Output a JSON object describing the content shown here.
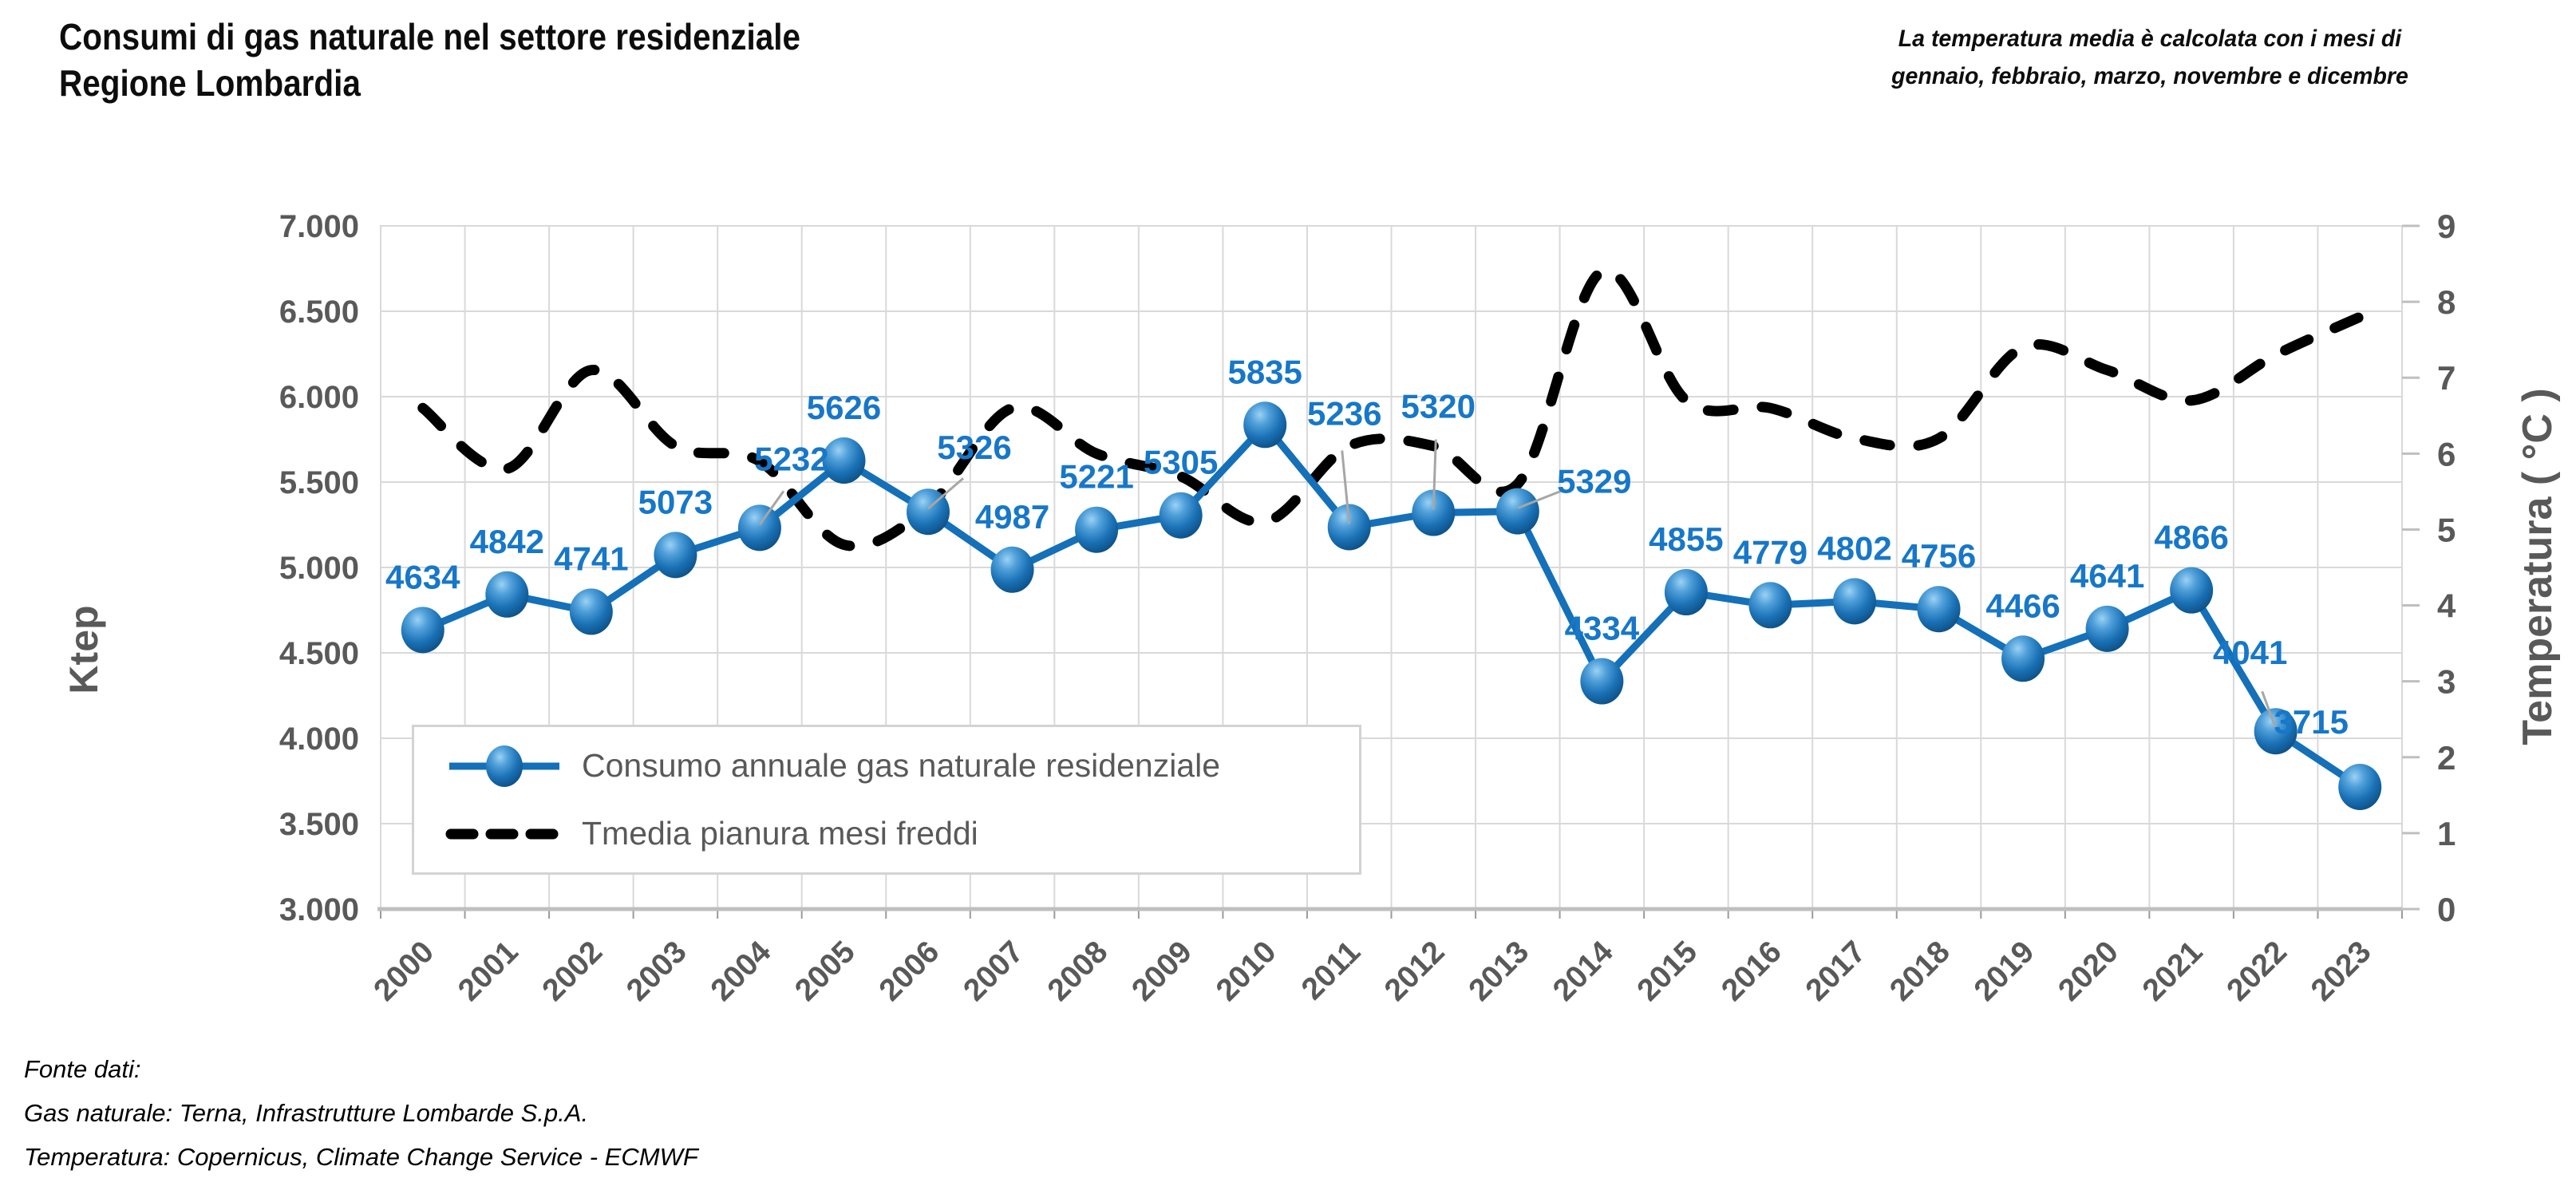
{
  "title": {
    "line1": "Consumi di gas naturale nel settore residenziale",
    "line2": "Regione Lombardia"
  },
  "note": {
    "line1": "La temperatura media è calcolata con i mesi di",
    "line2": "gennaio, febbraio, marzo, novembre e dicembre"
  },
  "source": {
    "line1": "Fonte dati:",
    "line2": "Gas naturale: Terna, Infrastrutture Lombarde S.p.A.",
    "line3": "Temperatura: Copernicus, Climate Change Service - ECMWF"
  },
  "colors": {
    "gas_line": "#1470B8",
    "gas_label": "#1777C8",
    "temp_line": "#000000",
    "grid": "#d9d9d9",
    "axis_line": "#bfbfbf",
    "axis_text": "#595959",
    "leader": "#a6a6a6"
  },
  "chart_data": {
    "type": "line",
    "x": [
      "2000",
      "2001",
      "2002",
      "2003",
      "2004",
      "2005",
      "2006",
      "2007",
      "2008",
      "2009",
      "2010",
      "2011",
      "2012",
      "2013",
      "2014",
      "2015",
      "2016",
      "2017",
      "2018",
      "2019",
      "2020",
      "2021",
      "2022",
      "2023"
    ],
    "series": [
      {
        "name": "Consumo annuale gas naturale residenziale",
        "axis": "left",
        "unit": "Ktep",
        "style": "solid-with-markers",
        "smooth": false,
        "values": [
          4634,
          4842,
          4741,
          5073,
          5232,
          5626,
          5326,
          4987,
          5221,
          5305,
          5835,
          5236,
          5320,
          5329,
          4334,
          4855,
          4779,
          4802,
          4756,
          4466,
          4641,
          4866,
          4041,
          3715
        ]
      },
      {
        "name": "Tmedia pianura mesi freddi",
        "axis": "right",
        "unit": "°C",
        "style": "dashed-smooth",
        "smooth": true,
        "values": [
          6.6,
          5.8,
          7.1,
          6.1,
          5.9,
          4.8,
          5.3,
          6.6,
          6.0,
          5.7,
          5.1,
          6.1,
          6.1,
          5.6,
          8.4,
          6.7,
          6.6,
          6.2,
          6.2,
          7.4,
          7.1,
          6.7,
          7.3,
          7.8
        ]
      }
    ],
    "left_axis": {
      "title": "Ktep",
      "min": 3000,
      "max": 7000,
      "ticks": [
        {
          "label": "3.000",
          "value": 3000
        },
        {
          "label": "3.500",
          "value": 3500
        },
        {
          "label": "4.000",
          "value": 4000
        },
        {
          "label": "4.500",
          "value": 4500
        },
        {
          "label": "5.000",
          "value": 5000
        },
        {
          "label": "5.500",
          "value": 5500
        },
        {
          "label": "6.000",
          "value": 6000
        },
        {
          "label": "6.500",
          "value": 6500
        },
        {
          "label": "7.000",
          "value": 7000
        }
      ]
    },
    "right_axis": {
      "title": "Temperatura ( °C )",
      "min": 0,
      "max": 9,
      "ticks": [
        {
          "label": "0",
          "value": 0
        },
        {
          "label": "1",
          "value": 1
        },
        {
          "label": "2",
          "value": 2
        },
        {
          "label": "3",
          "value": 3
        },
        {
          "label": "4",
          "value": 4
        },
        {
          "label": "5",
          "value": 5
        },
        {
          "label": "6",
          "value": 6
        },
        {
          "label": "7",
          "value": 7
        },
        {
          "label": "8",
          "value": 8
        },
        {
          "label": "9",
          "value": 9
        }
      ]
    },
    "legend": {
      "position": "inside-bottom-left",
      "entries": [
        "Consumo annuale gas naturale residenziale",
        "Tmedia pianura mesi freddi"
      ]
    },
    "grid": true,
    "data_labels_series": 0,
    "label_offsets": {
      "2004": [
        40,
        -86,
        30,
        -46
      ],
      "2006": [
        58,
        -80,
        44,
        -42
      ],
      "2011": [
        -6,
        -142,
        -9,
        -96
      ],
      "2012": [
        6,
        -133,
        3,
        -92
      ],
      "2013": [
        96,
        -37,
        56,
        -26
      ],
      "2022": [
        -32,
        -98,
        -17,
        -50
      ],
      "2023": [
        -61,
        -81
      ]
    },
    "leader_years": [
      "2004",
      "2006",
      "2011",
      "2012",
      "2013",
      "2022"
    ]
  }
}
